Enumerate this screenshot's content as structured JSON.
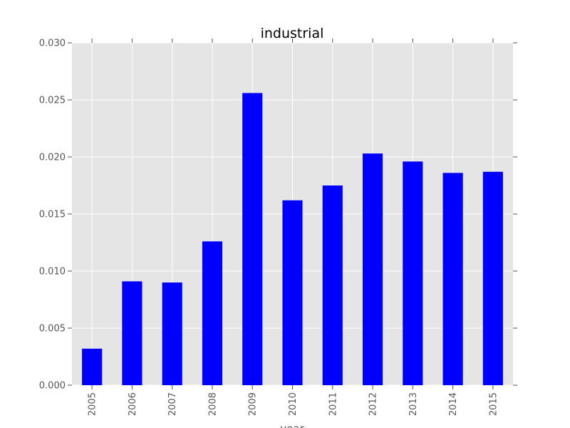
{
  "chart_data": {
    "type": "bar",
    "title": "industrial",
    "xlabel": "year",
    "ylabel": "",
    "categories": [
      "2005",
      "2006",
      "2007",
      "2008",
      "2009",
      "2010",
      "2011",
      "2012",
      "2013",
      "2014",
      "2015"
    ],
    "values": [
      0.0032,
      0.0091,
      0.009,
      0.0126,
      0.0256,
      0.0162,
      0.0175,
      0.0203,
      0.0196,
      0.0186,
      0.0187
    ],
    "ylim": [
      0,
      0.03
    ],
    "yticks": [
      "0.000",
      "0.005",
      "0.010",
      "0.015",
      "0.020",
      "0.025",
      "0.030"
    ],
    "grid": true,
    "legend": "none",
    "colors": {
      "bar": "#0000ff",
      "plot_background": "#e5e5e5",
      "grid": "#ffffff"
    }
  }
}
